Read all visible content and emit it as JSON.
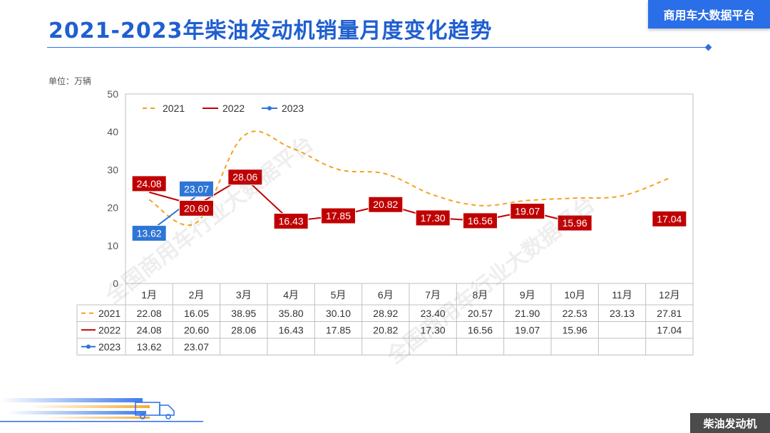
{
  "header": {
    "title": "2021-2023年柴油发动机销量月度变化趋势",
    "brand": "商用车大数据平台"
  },
  "footer": {
    "tag": "柴油发动机"
  },
  "watermark": "全国商用车行业大数据平台",
  "colors": {
    "accent": "#2a6ee8",
    "series_2021": "#f4a21e",
    "series_2022": "#c00000",
    "series_2023": "#2e75d6"
  },
  "chart_data": {
    "type": "line",
    "unit_label": "单位：万辆",
    "ylim": [
      0,
      50
    ],
    "yticks": [
      0,
      10,
      20,
      30,
      40,
      50
    ],
    "categories": [
      "1月",
      "2月",
      "3月",
      "4月",
      "5月",
      "6月",
      "7月",
      "8月",
      "9月",
      "10月",
      "11月",
      "12月"
    ],
    "legend_position": "top-left",
    "grid": false,
    "series": [
      {
        "name": "2021",
        "style": "dashed",
        "labels": false,
        "values": [
          22.08,
          16.05,
          38.95,
          35.8,
          30.1,
          28.92,
          23.4,
          20.57,
          21.9,
          22.53,
          23.13,
          27.81
        ]
      },
      {
        "name": "2022",
        "style": "solid",
        "labels": true,
        "values": [
          24.08,
          20.6,
          28.06,
          16.43,
          17.85,
          20.82,
          17.3,
          16.56,
          19.07,
          15.96,
          null,
          17.04
        ]
      },
      {
        "name": "2023",
        "style": "solid-marker",
        "labels": true,
        "values": [
          13.62,
          23.07,
          null,
          null,
          null,
          null,
          null,
          null,
          null,
          null,
          null,
          null
        ]
      }
    ],
    "table": {
      "rows": [
        {
          "series": "2021",
          "cells": [
            "22.08",
            "16.05",
            "38.95",
            "35.80",
            "30.10",
            "28.92",
            "23.40",
            "20.57",
            "21.90",
            "22.53",
            "23.13",
            "27.81"
          ]
        },
        {
          "series": "2022",
          "cells": [
            "24.08",
            "20.60",
            "28.06",
            "16.43",
            "17.85",
            "20.82",
            "17.30",
            "16.56",
            "19.07",
            "15.96",
            "",
            "17.04"
          ]
        },
        {
          "series": "2023",
          "cells": [
            "13.62",
            "23.07",
            "",
            "",
            "",
            "",
            "",
            "",
            "",
            "",
            "",
            ""
          ]
        }
      ]
    }
  }
}
